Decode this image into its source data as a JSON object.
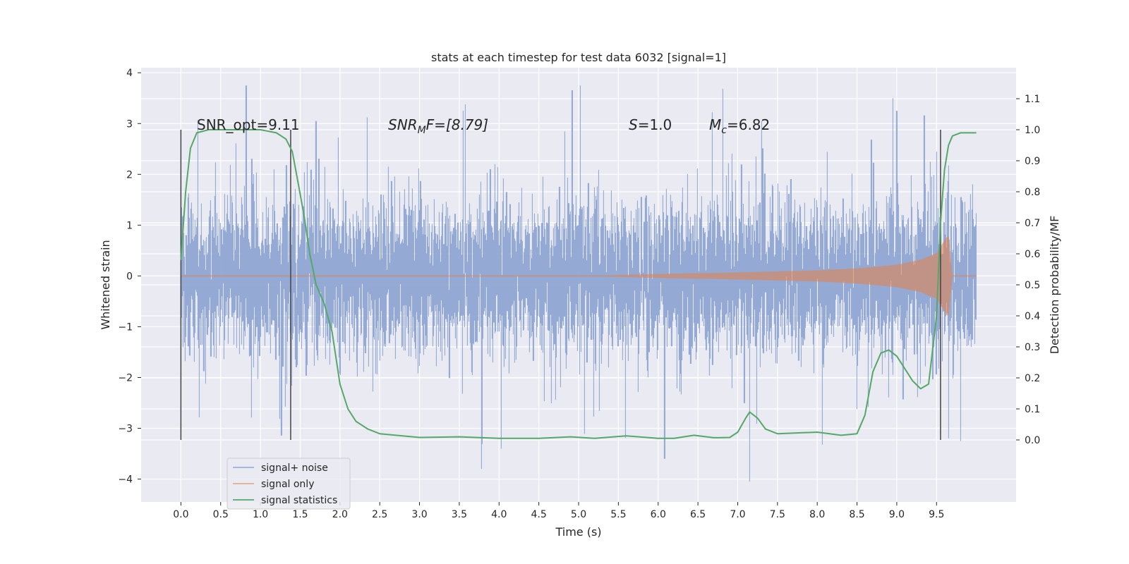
{
  "chart_data": {
    "type": "line",
    "title": "stats at each timestep for test data 6032 [signal=1]",
    "xlabel": "Time (s)",
    "ylabel": "Whitened strain",
    "ylabel_right": "Detection probability/MF",
    "xlim": [
      -0.5,
      10.5
    ],
    "ylim": [
      -4.45,
      4.1
    ],
    "ylim_right": [
      -0.2,
      1.2
    ],
    "x_ticks": [
      0.0,
      0.5,
      1.0,
      1.5,
      2.0,
      2.5,
      3.0,
      3.5,
      4.0,
      4.5,
      5.0,
      5.5,
      6.0,
      6.5,
      7.0,
      7.5,
      8.0,
      8.5,
      9.0,
      9.5
    ],
    "x_tick_labels": [
      "0.0",
      "0.5",
      "1.0",
      "1.5",
      "2.0",
      "2.5",
      "3.0",
      "3.5",
      "4.0",
      "4.5",
      "5.0",
      "5.5",
      "6.0",
      "6.5",
      "7.0",
      "7.5",
      "8.0",
      "8.5",
      "9.0",
      "9.5"
    ],
    "y_ticks": [
      4,
      3,
      2,
      1,
      0,
      -1,
      -2,
      -3,
      -4
    ],
    "y_tick_labels": [
      "4",
      "3",
      "2",
      "1",
      "0",
      "−1",
      "−2",
      "−3",
      "−4"
    ],
    "y_right_ticks": [
      1.1,
      1.0,
      0.9,
      0.8,
      0.7,
      0.6,
      0.5,
      0.4,
      0.3,
      0.2,
      0.1,
      0.0
    ],
    "y_right_tick_labels": [
      "1.1",
      "1.0",
      "0.9",
      "0.8",
      "0.7",
      "0.6",
      "0.5",
      "0.4",
      "0.3",
      "0.2",
      "0.1",
      "0.0"
    ],
    "grid": true,
    "legend_position": "lower-left",
    "vlines_x": [
      0.0,
      1.38,
      9.55
    ],
    "series": [
      {
        "name": "signal+ noise",
        "axis": "left",
        "color": "#8fa6d3",
        "style": "dense-noise",
        "x_range": [
          0.0,
          10.0
        ],
        "typical_band": [
          -1.5,
          1.6
        ],
        "peaks": [
          [
            0.82,
            3.75
          ],
          [
            1.7,
            3.05
          ],
          [
            7.15,
            -4.05
          ],
          [
            3.78,
            -3.8
          ],
          [
            4.03,
            -3.4
          ],
          [
            6.08,
            -3.6
          ],
          [
            8.95,
            3.5
          ],
          [
            9.8,
            -3.25
          ],
          [
            9.0,
            3.25
          ],
          [
            7.3,
            3.05
          ],
          [
            9.65,
            -3.2
          ]
        ]
      },
      {
        "name": "signal only",
        "axis": "left",
        "color": "#dd8452",
        "style": "chirp",
        "x": [
          0.0,
          5.0,
          6.0,
          7.0,
          7.5,
          8.0,
          8.5,
          9.0,
          9.3,
          9.5,
          9.62,
          9.65,
          9.7,
          10.0
        ],
        "amplitude": [
          0.0,
          0.0,
          0.04,
          0.07,
          0.09,
          0.11,
          0.15,
          0.22,
          0.32,
          0.45,
          0.75,
          0.8,
          0.0,
          0.0
        ]
      },
      {
        "name": "signal statistics",
        "axis": "right",
        "color": "#55a868",
        "style": "line",
        "x": [
          0.0,
          0.06,
          0.12,
          0.2,
          0.35,
          0.5,
          0.8,
          1.0,
          1.2,
          1.32,
          1.4,
          1.48,
          1.55,
          1.62,
          1.7,
          1.8,
          1.9,
          2.0,
          2.1,
          2.2,
          2.35,
          2.5,
          3.0,
          3.5,
          4.0,
          4.5,
          4.9,
          5.2,
          5.6,
          6.0,
          6.2,
          6.45,
          6.7,
          6.9,
          7.0,
          7.1,
          7.15,
          7.25,
          7.35,
          7.5,
          8.0,
          8.3,
          8.5,
          8.6,
          8.7,
          8.8,
          8.9,
          9.0,
          9.1,
          9.2,
          9.3,
          9.4,
          9.5,
          9.55,
          9.6,
          9.65,
          9.7,
          9.8,
          10.0
        ],
        "y": [
          0.58,
          0.8,
          0.94,
          0.99,
          1.0,
          1.0,
          1.0,
          1.0,
          0.99,
          0.97,
          0.93,
          0.82,
          0.72,
          0.6,
          0.5,
          0.44,
          0.35,
          0.18,
          0.1,
          0.06,
          0.035,
          0.02,
          0.008,
          0.01,
          0.005,
          0.005,
          0.01,
          0.005,
          0.013,
          0.005,
          0.005,
          0.015,
          0.007,
          0.008,
          0.025,
          0.07,
          0.09,
          0.07,
          0.035,
          0.02,
          0.025,
          0.015,
          0.02,
          0.08,
          0.22,
          0.28,
          0.29,
          0.27,
          0.23,
          0.19,
          0.165,
          0.18,
          0.4,
          0.7,
          0.87,
          0.95,
          0.98,
          0.99,
          0.99
        ]
      }
    ],
    "annotations": {
      "snr_opt": {
        "text": "SNR_opt=9.11",
        "x": 0.2,
        "y": 2.85
      },
      "snr_mf_label": {
        "base": "SNR",
        "sub": "M",
        "tail": "F=[8.79]",
        "x": 2.6,
        "y": 2.85
      },
      "s_label": {
        "italic": "S",
        "tail": "=1.0",
        "x": 5.62,
        "y": 2.85
      },
      "mc_label": {
        "italic": "M",
        "sub": "c",
        "tail": "=6.82",
        "x": 6.62,
        "y": 2.85
      }
    }
  }
}
